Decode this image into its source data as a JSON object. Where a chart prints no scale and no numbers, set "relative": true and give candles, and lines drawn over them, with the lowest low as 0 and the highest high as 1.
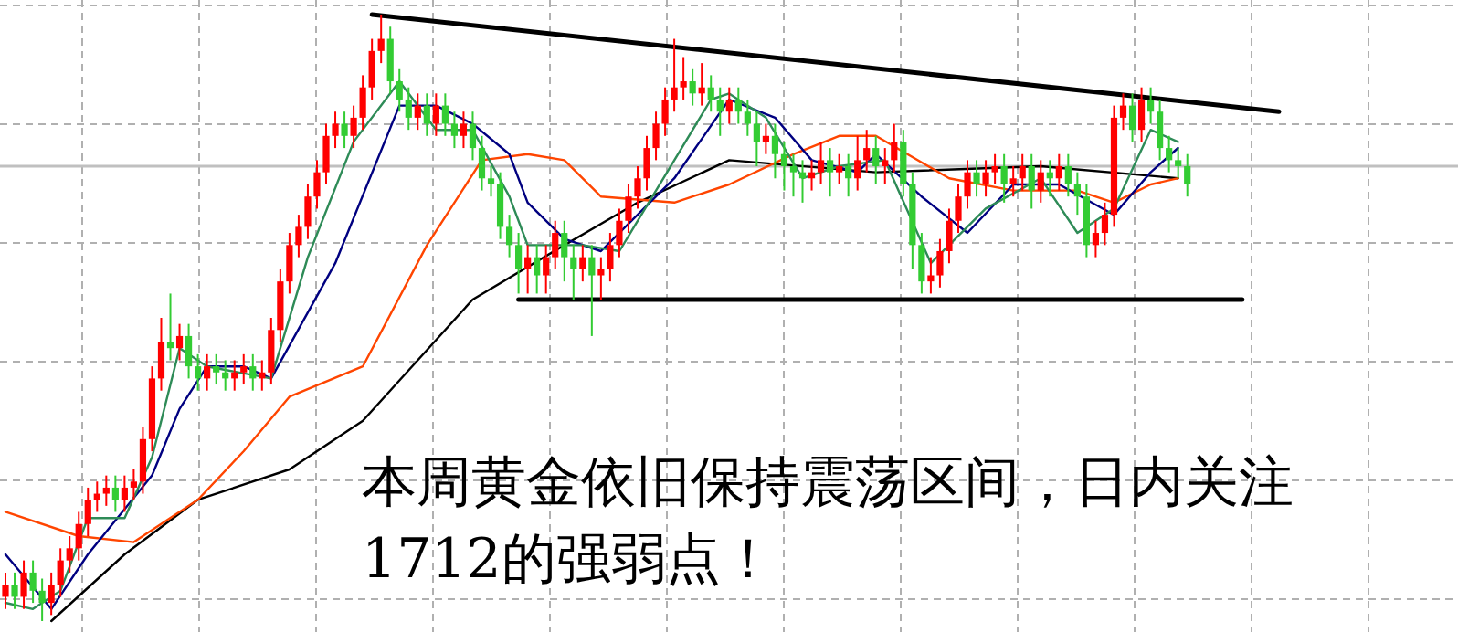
{
  "chart_data": {
    "type": "candlestick",
    "relative": true,
    "grid": true,
    "categories": [
      null,
      null,
      null,
      null,
      null,
      null,
      null,
      null,
      null,
      null,
      null,
      null,
      null,
      null,
      null,
      null,
      null,
      null,
      null,
      null,
      null,
      null,
      null,
      null,
      null,
      null,
      null,
      null,
      null,
      null,
      null,
      null,
      null,
      null,
      null,
      null,
      null,
      null,
      null,
      null,
      null,
      null,
      null,
      null,
      null,
      null,
      null,
      null,
      null,
      null,
      null,
      null,
      null,
      null,
      null,
      null,
      null,
      null,
      null,
      null,
      null,
      null,
      null,
      null,
      null,
      null,
      null,
      null,
      null,
      null,
      null,
      null,
      null,
      null,
      null,
      null,
      null,
      null,
      null,
      null,
      null,
      null,
      null,
      null,
      null,
      null,
      null,
      null,
      null,
      null,
      null,
      null,
      null,
      null,
      null,
      null,
      null,
      null,
      null,
      null,
      null,
      null,
      null,
      null,
      null,
      null,
      null,
      null,
      null,
      null,
      null,
      null,
      null,
      null,
      null,
      null,
      null,
      null,
      null,
      null,
      null,
      null,
      null,
      null,
      null,
      null,
      null,
      null,
      null,
      null,
      null,
      null,
      null,
      null,
      null,
      null,
      null,
      null,
      null,
      null
    ],
    "ohlc": [
      [
        0.04,
        0.08,
        0.02,
        0.06
      ],
      [
        0.06,
        0.08,
        0.02,
        0.04
      ],
      [
        0.04,
        0.1,
        0.02,
        0.08
      ],
      [
        0.08,
        0.1,
        0.03,
        0.05
      ],
      [
        0.05,
        0.07,
        0.0,
        0.03
      ],
      [
        0.03,
        0.08,
        0.01,
        0.06
      ],
      [
        0.06,
        0.12,
        0.04,
        0.1
      ],
      [
        0.1,
        0.14,
        0.08,
        0.12
      ],
      [
        0.12,
        0.18,
        0.1,
        0.16
      ],
      [
        0.16,
        0.22,
        0.14,
        0.2
      ],
      [
        0.2,
        0.23,
        0.18,
        0.21
      ],
      [
        0.21,
        0.24,
        0.19,
        0.22
      ],
      [
        0.22,
        0.24,
        0.18,
        0.2
      ],
      [
        0.2,
        0.24,
        0.18,
        0.22
      ],
      [
        0.22,
        0.25,
        0.2,
        0.23
      ],
      [
        0.23,
        0.32,
        0.21,
        0.3
      ],
      [
        0.3,
        0.42,
        0.28,
        0.4
      ],
      [
        0.4,
        0.5,
        0.38,
        0.46
      ],
      [
        0.46,
        0.54,
        0.43,
        0.45
      ],
      [
        0.45,
        0.49,
        0.43,
        0.47
      ],
      [
        0.47,
        0.49,
        0.4,
        0.42
      ],
      [
        0.42,
        0.44,
        0.38,
        0.4
      ],
      [
        0.4,
        0.44,
        0.38,
        0.42
      ],
      [
        0.42,
        0.44,
        0.39,
        0.41
      ],
      [
        0.41,
        0.43,
        0.38,
        0.4
      ],
      [
        0.4,
        0.43,
        0.38,
        0.41
      ],
      [
        0.41,
        0.44,
        0.39,
        0.42
      ],
      [
        0.42,
        0.44,
        0.38,
        0.4
      ],
      [
        0.4,
        0.43,
        0.38,
        0.41
      ],
      [
        0.41,
        0.5,
        0.39,
        0.48
      ],
      [
        0.48,
        0.58,
        0.46,
        0.56
      ],
      [
        0.56,
        0.64,
        0.54,
        0.62
      ],
      [
        0.62,
        0.67,
        0.6,
        0.65
      ],
      [
        0.65,
        0.72,
        0.63,
        0.7
      ],
      [
        0.7,
        0.76,
        0.68,
        0.74
      ],
      [
        0.74,
        0.82,
        0.72,
        0.8
      ],
      [
        0.8,
        0.84,
        0.78,
        0.82
      ],
      [
        0.82,
        0.84,
        0.78,
        0.8
      ],
      [
        0.8,
        0.85,
        0.78,
        0.83
      ],
      [
        0.83,
        0.9,
        0.81,
        0.88
      ],
      [
        0.88,
        0.96,
        0.86,
        0.94
      ],
      [
        0.94,
        1.0,
        0.92,
        0.96
      ],
      [
        0.96,
        0.98,
        0.87,
        0.89
      ],
      [
        0.89,
        0.91,
        0.84,
        0.86
      ],
      [
        0.86,
        0.88,
        0.81,
        0.83
      ],
      [
        0.83,
        0.87,
        0.81,
        0.85
      ],
      [
        0.85,
        0.87,
        0.8,
        0.82
      ],
      [
        0.82,
        0.87,
        0.8,
        0.85
      ],
      [
        0.85,
        0.87,
        0.8,
        0.82
      ],
      [
        0.82,
        0.84,
        0.78,
        0.8
      ],
      [
        0.8,
        0.84,
        0.78,
        0.82
      ],
      [
        0.82,
        0.84,
        0.76,
        0.78
      ],
      [
        0.78,
        0.8,
        0.71,
        0.73
      ],
      [
        0.73,
        0.75,
        0.7,
        0.72
      ],
      [
        0.72,
        0.74,
        0.63,
        0.65
      ],
      [
        0.65,
        0.67,
        0.6,
        0.62
      ],
      [
        0.62,
        0.64,
        0.54,
        0.58
      ],
      [
        0.58,
        0.62,
        0.54,
        0.6
      ],
      [
        0.6,
        0.62,
        0.54,
        0.57
      ],
      [
        0.57,
        0.62,
        0.54,
        0.6
      ],
      [
        0.6,
        0.66,
        0.58,
        0.64
      ],
      [
        0.64,
        0.66,
        0.56,
        0.6
      ],
      [
        0.6,
        0.62,
        0.53,
        0.58
      ],
      [
        0.58,
        0.62,
        0.56,
        0.6
      ],
      [
        0.6,
        0.62,
        0.47,
        0.57
      ],
      [
        0.57,
        0.6,
        0.53,
        0.58
      ],
      [
        0.58,
        0.64,
        0.56,
        0.62
      ],
      [
        0.62,
        0.68,
        0.6,
        0.66
      ],
      [
        0.66,
        0.72,
        0.64,
        0.7
      ],
      [
        0.7,
        0.75,
        0.68,
        0.73
      ],
      [
        0.73,
        0.8,
        0.71,
        0.78
      ],
      [
        0.78,
        0.84,
        0.76,
        0.82
      ],
      [
        0.82,
        0.88,
        0.8,
        0.86
      ],
      [
        0.86,
        0.96,
        0.84,
        0.88
      ],
      [
        0.88,
        0.93,
        0.86,
        0.89
      ],
      [
        0.89,
        0.91,
        0.85,
        0.87
      ],
      [
        0.87,
        0.92,
        0.85,
        0.88
      ],
      [
        0.88,
        0.9,
        0.84,
        0.86
      ],
      [
        0.86,
        0.88,
        0.8,
        0.84
      ],
      [
        0.84,
        0.88,
        0.82,
        0.86
      ],
      [
        0.86,
        0.88,
        0.82,
        0.84
      ],
      [
        0.84,
        0.86,
        0.8,
        0.82
      ],
      [
        0.82,
        0.84,
        0.75,
        0.79
      ],
      [
        0.79,
        0.82,
        0.77,
        0.8
      ],
      [
        0.8,
        0.82,
        0.73,
        0.77
      ],
      [
        0.77,
        0.79,
        0.71,
        0.75
      ],
      [
        0.75,
        0.77,
        0.7,
        0.74
      ],
      [
        0.74,
        0.76,
        0.69,
        0.73
      ],
      [
        0.73,
        0.76,
        0.71,
        0.74
      ],
      [
        0.74,
        0.79,
        0.72,
        0.76
      ],
      [
        0.76,
        0.78,
        0.7,
        0.74
      ],
      [
        0.74,
        0.77,
        0.72,
        0.75
      ],
      [
        0.75,
        0.77,
        0.7,
        0.73
      ],
      [
        0.73,
        0.8,
        0.71,
        0.76
      ],
      [
        0.76,
        0.81,
        0.74,
        0.78
      ],
      [
        0.78,
        0.8,
        0.72,
        0.75
      ],
      [
        0.75,
        0.78,
        0.72,
        0.76
      ],
      [
        0.76,
        0.82,
        0.74,
        0.79
      ],
      [
        0.79,
        0.81,
        0.7,
        0.72
      ],
      [
        0.72,
        0.74,
        0.58,
        0.62
      ],
      [
        0.62,
        0.64,
        0.54,
        0.56
      ],
      [
        0.56,
        0.6,
        0.54,
        0.57
      ],
      [
        0.57,
        0.63,
        0.55,
        0.61
      ],
      [
        0.61,
        0.68,
        0.59,
        0.66
      ],
      [
        0.66,
        0.72,
        0.64,
        0.7
      ],
      [
        0.7,
        0.76,
        0.68,
        0.74
      ],
      [
        0.74,
        0.76,
        0.7,
        0.72
      ],
      [
        0.72,
        0.76,
        0.7,
        0.74
      ],
      [
        0.74,
        0.77,
        0.72,
        0.75
      ],
      [
        0.75,
        0.77,
        0.69,
        0.72
      ],
      [
        0.72,
        0.75,
        0.7,
        0.73
      ],
      [
        0.73,
        0.77,
        0.71,
        0.75
      ],
      [
        0.75,
        0.77,
        0.68,
        0.71
      ],
      [
        0.71,
        0.76,
        0.69,
        0.74
      ],
      [
        0.74,
        0.76,
        0.7,
        0.73
      ],
      [
        0.73,
        0.77,
        0.71,
        0.75
      ],
      [
        0.75,
        0.77,
        0.7,
        0.72
      ],
      [
        0.72,
        0.74,
        0.67,
        0.7
      ],
      [
        0.7,
        0.72,
        0.6,
        0.62
      ],
      [
        0.62,
        0.66,
        0.6,
        0.64
      ],
      [
        0.64,
        0.69,
        0.62,
        0.67
      ],
      [
        0.67,
        0.85,
        0.65,
        0.83
      ],
      [
        0.83,
        0.87,
        0.81,
        0.85
      ],
      [
        0.85,
        0.87,
        0.79,
        0.81
      ],
      [
        0.81,
        0.88,
        0.79,
        0.86
      ],
      [
        0.86,
        0.88,
        0.82,
        0.84
      ],
      [
        0.84,
        0.86,
        0.76,
        0.78
      ],
      [
        0.78,
        0.8,
        0.74,
        0.76
      ],
      [
        0.76,
        0.78,
        0.73,
        0.75
      ],
      [
        0.75,
        0.77,
        0.7,
        0.72
      ],
      null,
      null,
      null,
      null,
      null,
      null,
      null,
      null,
      null,
      null
    ],
    "series": [
      {
        "type": "line",
        "color": "#000000",
        "values": [
          null,
          null,
          null,
          null,
          null,
          0.0,
          null,
          null,
          null,
          null,
          null,
          null,
          null,
          0.11,
          null,
          null,
          null,
          null,
          null,
          null,
          null,
          0.2,
          null,
          null,
          null,
          null,
          null,
          null,
          null,
          null,
          null,
          0.25,
          null,
          null,
          null,
          null,
          null,
          null,
          null,
          0.33,
          null,
          null,
          null,
          null,
          null,
          null,
          null,
          null,
          null,
          null,
          null,
          0.53,
          null,
          null,
          null,
          null,
          null,
          null,
          null,
          null,
          null,
          0.62,
          null,
          null,
          null,
          null,
          null,
          null,
          null,
          0.69,
          null,
          null,
          null,
          null,
          null,
          null,
          null,
          null,
          null,
          0.76,
          null,
          null,
          null,
          null,
          null,
          null,
          null,
          null,
          null,
          null,
          null,
          null,
          null,
          null,
          null,
          0.74,
          null,
          null,
          null,
          null,
          null,
          null,
          null,
          null,
          null,
          null,
          null,
          null,
          null,
          null,
          null,
          null,
          null,
          0.75,
          null,
          null,
          null,
          null,
          null,
          null,
          null,
          null,
          null,
          null,
          null,
          null,
          null,
          null,
          0.73,
          null,
          null,
          null,
          null,
          null,
          null,
          null,
          null,
          null,
          null,
          null
        ]
      },
      {
        "type": "line",
        "color": "#ff4500",
        "values": [
          0.18,
          null,
          null,
          null,
          null,
          null,
          null,
          null,
          0.14,
          null,
          null,
          null,
          null,
          null,
          0.13,
          null,
          null,
          null,
          null,
          null,
          null,
          0.2,
          null,
          null,
          null,
          null,
          0.28,
          null,
          null,
          null,
          null,
          0.37,
          null,
          null,
          null,
          null,
          null,
          null,
          null,
          0.42,
          null,
          null,
          null,
          null,
          null,
          null,
          0.62,
          null,
          null,
          null,
          null,
          null,
          0.76,
          null,
          null,
          null,
          null,
          0.77,
          null,
          null,
          null,
          0.76,
          null,
          null,
          null,
          0.7,
          null,
          null,
          null,
          null,
          null,
          null,
          null,
          0.69,
          null,
          null,
          null,
          null,
          null,
          0.72,
          null,
          null,
          null,
          null,
          null,
          null,
          0.77,
          null,
          null,
          null,
          null,
          0.8,
          null,
          null,
          null,
          0.8,
          null,
          null,
          null,
          null,
          null,
          null,
          null,
          0.73,
          null,
          null,
          null,
          null,
          null,
          null,
          0.71,
          null,
          null,
          null,
          null,
          null,
          null,
          0.71,
          null,
          null,
          null,
          0.69,
          null,
          null,
          null,
          0.72,
          null,
          null,
          0.73,
          null,
          null,
          null,
          null,
          null,
          null,
          null,
          null,
          null,
          null,
          null
        ]
      },
      {
        "type": "line",
        "color": "#000080",
        "values": [
          0.11,
          null,
          null,
          null,
          null,
          0.02,
          null,
          null,
          null,
          0.11,
          null,
          null,
          null,
          null,
          null,
          null,
          0.24,
          null,
          null,
          0.35,
          null,
          null,
          0.42,
          null,
          null,
          null,
          0.42,
          null,
          null,
          0.4,
          null,
          null,
          null,
          null,
          null,
          null,
          0.59,
          null,
          null,
          null,
          null,
          null,
          null,
          0.85,
          null,
          null,
          null,
          0.85,
          null,
          null,
          null,
          0.82,
          null,
          null,
          null,
          0.77,
          null,
          0.69,
          null,
          null,
          null,
          0.63,
          null,
          null,
          null,
          0.61,
          null,
          null,
          null,
          null,
          null,
          null,
          null,
          0.73,
          null,
          null,
          null,
          null,
          null,
          0.86,
          null,
          null,
          null,
          null,
          0.83,
          null,
          null,
          null,
          0.76,
          null,
          null,
          null,
          null,
          0.74,
          null,
          0.77,
          null,
          null,
          null,
          null,
          0.7,
          null,
          null,
          null,
          null,
          0.64,
          null,
          null,
          null,
          null,
          0.72,
          null,
          null,
          null,
          null,
          0.72,
          null,
          null,
          null,
          null,
          null,
          0.67,
          null,
          null,
          null,
          0.74,
          null,
          null,
          0.78,
          null,
          null,
          null,
          null,
          null,
          null,
          null,
          null,
          null,
          null,
          null
        ]
      },
      {
        "type": "line",
        "color": "#2e8b57",
        "values": [
          0.03,
          null,
          null,
          0.02,
          null,
          null,
          0.05,
          null,
          null,
          0.17,
          null,
          null,
          null,
          0.17,
          null,
          null,
          0.27,
          null,
          null,
          0.45,
          null,
          null,
          0.42,
          null,
          null,
          null,
          null,
          null,
          null,
          0.4,
          null,
          null,
          null,
          0.6,
          null,
          null,
          null,
          null,
          0.79,
          null,
          null,
          null,
          null,
          0.89,
          null,
          null,
          null,
          0.81,
          null,
          null,
          null,
          0.81,
          null,
          null,
          null,
          0.7,
          null,
          0.62,
          null,
          null,
          0.62,
          null,
          null,
          0.62,
          null,
          null,
          null,
          0.61,
          null,
          null,
          null,
          null,
          null,
          0.76,
          null,
          null,
          null,
          0.86,
          null,
          0.87,
          null,
          null,
          null,
          0.83,
          null,
          null,
          null,
          0.73,
          null,
          null,
          null,
          0.75,
          null,
          null,
          null,
          null,
          0.76,
          null,
          null,
          null,
          null,
          0.59,
          null,
          null,
          null,
          null,
          null,
          0.68,
          null,
          null,
          null,
          null,
          null,
          0.73,
          null,
          null,
          null,
          0.64,
          null,
          null,
          null,
          0.68,
          null,
          null,
          null,
          0.81,
          null,
          null,
          0.79,
          null,
          null,
          null,
          null,
          null,
          null,
          null,
          null,
          null,
          null,
          null
        ]
      },
      {
        "type": "line",
        "color": "#000000",
        "values": [
          null,
          null,
          null,
          null,
          null,
          null,
          null,
          null,
          null,
          null,
          null,
          null,
          null,
          null,
          null,
          null,
          null,
          null,
          null,
          null,
          null,
          null,
          null,
          null,
          null,
          null,
          null,
          null,
          null,
          null,
          null,
          null,
          null,
          null,
          null,
          null,
          null,
          null,
          null,
          null,
          1.0,
          null,
          null,
          null,
          null,
          null,
          null,
          null,
          null,
          null,
          null,
          null,
          null,
          null,
          null,
          null,
          null,
          null,
          null,
          null,
          null,
          null,
          null,
          null,
          null,
          null,
          null,
          null,
          null,
          null,
          null,
          null,
          null,
          null,
          null,
          null,
          null,
          null,
          null,
          null,
          null,
          null,
          null,
          null,
          null,
          null,
          null,
          null,
          null,
          null,
          null,
          null,
          null,
          null,
          null,
          null,
          null,
          null,
          null,
          null,
          null,
          null,
          null,
          null,
          null,
          null,
          null,
          null,
          null,
          null,
          null,
          null,
          null,
          null,
          null,
          null,
          null,
          null,
          null,
          null,
          null,
          null,
          null,
          null,
          null,
          null,
          null,
          null,
          null,
          null,
          null,
          null,
          null,
          null,
          null,
          null,
          null,
          null,
          null,
          0.84
        ]
      },
      {
        "type": "line",
        "color": "#000000",
        "values": [
          null,
          null,
          null,
          null,
          null,
          null,
          null,
          null,
          null,
          null,
          null,
          null,
          null,
          null,
          null,
          null,
          null,
          null,
          null,
          null,
          null,
          null,
          null,
          null,
          null,
          null,
          null,
          null,
          null,
          null,
          null,
          null,
          null,
          null,
          null,
          null,
          null,
          null,
          null,
          null,
          null,
          null,
          null,
          null,
          null,
          null,
          null,
          null,
          null,
          null,
          null,
          null,
          null,
          null,
          null,
          null,
          0.53,
          null,
          null,
          null,
          null,
          null,
          null,
          null,
          null,
          null,
          null,
          null,
          null,
          null,
          null,
          null,
          null,
          null,
          null,
          null,
          null,
          null,
          null,
          null,
          null,
          null,
          null,
          null,
          null,
          null,
          null,
          null,
          null,
          null,
          null,
          null,
          null,
          null,
          null,
          null,
          null,
          null,
          null,
          null,
          null,
          null,
          null,
          null,
          null,
          null,
          null,
          null,
          null,
          null,
          null,
          null,
          null,
          null,
          null,
          null,
          null,
          null,
          null,
          null,
          null,
          null,
          null,
          null,
          null,
          null,
          null,
          null,
          null,
          null,
          null,
          null,
          null,
          null,
          null,
          0.53,
          null,
          null,
          null,
          null
        ]
      }
    ],
    "ref_lines": [
      {
        "axis": "y",
        "value": 0.75,
        "color": "#c0c0c0"
      }
    ],
    "annotations": [
      "本周黄金依旧保持震荡区间，日内关注1712的强弱点！"
    ]
  }
}
